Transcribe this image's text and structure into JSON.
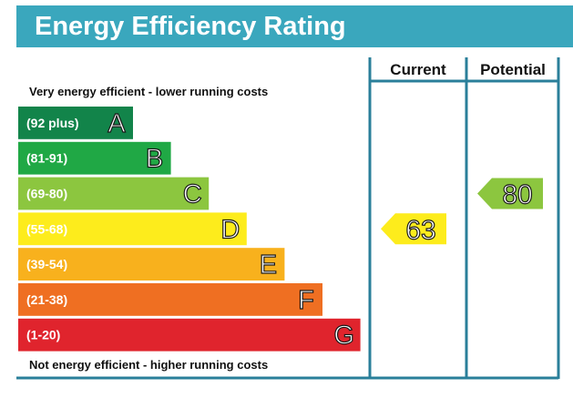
{
  "title": "Energy Efficiency Rating",
  "colors": {
    "header": "#3aa7bd",
    "frame": "#2a7f9a",
    "arrow_fill": "#fbe52b",
    "arrow_potential": "#9cc83c",
    "text_light": "#ffffff"
  },
  "chart_data": {
    "type": "bar",
    "title": "Energy Efficiency Rating",
    "top_note": "Very energy efficient - lower running costs",
    "bottom_note": "Not energy efficient - higher running costs",
    "columns": [
      "Current",
      "Potential"
    ],
    "bands": [
      {
        "letter": "A",
        "range": "(92 plus)",
        "min": 92,
        "max": 100,
        "color": "#12844a"
      },
      {
        "letter": "B",
        "range": "(81-91)",
        "min": 81,
        "max": 91,
        "color": "#20a845"
      },
      {
        "letter": "C",
        "range": "(69-80)",
        "min": 69,
        "max": 80,
        "color": "#8cc63f"
      },
      {
        "letter": "D",
        "range": "(55-68)",
        "min": 55,
        "max": 68,
        "color": "#fdec1c"
      },
      {
        "letter": "E",
        "range": "(39-54)",
        "min": 39,
        "max": 54,
        "color": "#f8b11d"
      },
      {
        "letter": "F",
        "range": "(21-38)",
        "min": 21,
        "max": 38,
        "color": "#ef6f22"
      },
      {
        "letter": "G",
        "range": "(1-20)",
        "min": 1,
        "max": 20,
        "color": "#e0242d"
      }
    ],
    "current": {
      "value": 63,
      "band": "D",
      "color": "#fdec1c"
    },
    "potential": {
      "value": 80,
      "band": "C",
      "color": "#8cc63f"
    }
  }
}
